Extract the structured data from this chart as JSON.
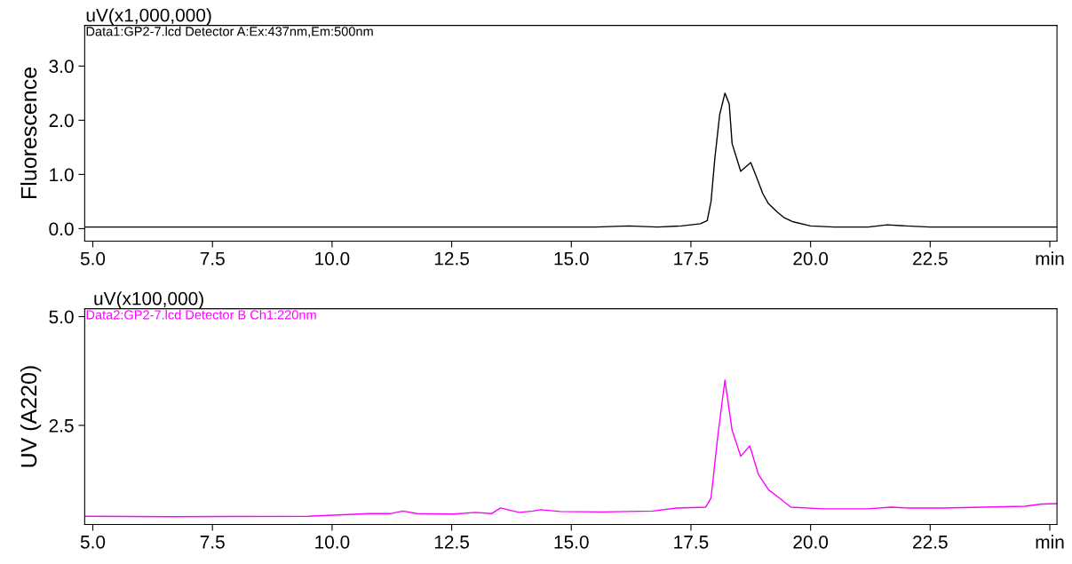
{
  "chart_data": [
    {
      "type": "line",
      "ylabel": "Fluorescence",
      "annotations": [
        "uV(x1,000,000)"
      ],
      "xlim": [
        4.83,
        25.15
      ],
      "ylim": [
        -0.23,
        3.75
      ],
      "xticks": [
        {
          "value": 5,
          "label": "5.0"
        },
        7.5,
        {
          "value": 10,
          "label": "10.0"
        },
        12.5,
        {
          "value": 15,
          "label": "15.0"
        },
        17.5,
        {
          "value": 20,
          "label": "20.0"
        },
        22.5,
        {
          "value": 25,
          "label": "min"
        }
      ],
      "yticks": [
        {
          "value": 0,
          "label": "0.0"
        },
        {
          "value": 1,
          "label": "1.0"
        },
        {
          "value": 2,
          "label": "2.0"
        },
        {
          "value": 3,
          "label": "3.0"
        }
      ],
      "grid": false,
      "legend": false,
      "series": [
        {
          "name": "Data1:GP2-7.lcd Detector A:Ex:437nm,Em:500nm",
          "color": "#000000",
          "x": [
            4.83,
            15.5,
            16.2,
            16.8,
            17.3,
            17.7,
            17.84,
            17.92,
            18.0,
            18.1,
            18.21,
            18.3,
            18.36,
            18.54,
            18.75,
            18.85,
            19.0,
            19.12,
            19.3,
            19.45,
            19.62,
            20.0,
            20.5,
            21.2,
            21.6,
            22.0,
            22.5,
            25.15
          ],
          "values": [
            0.03,
            0.03,
            0.05,
            0.03,
            0.05,
            0.09,
            0.15,
            0.5,
            1.3,
            2.1,
            2.5,
            2.3,
            1.57,
            1.06,
            1.22,
            1.0,
            0.65,
            0.46,
            0.31,
            0.2,
            0.13,
            0.05,
            0.03,
            0.03,
            0.07,
            0.05,
            0.03,
            0.03
          ]
        }
      ]
    },
    {
      "type": "line",
      "ylabel": "UV (A220)",
      "annotations": [
        "uV(x100,000)"
      ],
      "xlim": [
        4.83,
        25.15
      ],
      "ylim": [
        0.22,
        5.18
      ],
      "xticks": [
        {
          "value": 5,
          "label": "5.0"
        },
        7.5,
        {
          "value": 10,
          "label": "10.0"
        },
        12.5,
        {
          "value": 15,
          "label": "15.0"
        },
        17.5,
        {
          "value": 20,
          "label": "20.0"
        },
        22.5,
        {
          "value": 25,
          "label": "min"
        }
      ],
      "yticks": [
        2.5,
        {
          "value": 5,
          "label": "5.0"
        }
      ],
      "grid": false,
      "legend": false,
      "series": [
        {
          "name": "Data2:GP2-7.lcd Detector B Ch1:220nm",
          "color": "#ff00ff",
          "x": [
            4.84,
            6.64,
            9.5,
            10.78,
            11.21,
            11.48,
            11.78,
            12.56,
            12.99,
            13.33,
            13.52,
            13.91,
            14.2,
            14.36,
            14.77,
            15.63,
            16.7,
            17.2,
            17.81,
            17.92,
            18.06,
            18.21,
            18.36,
            18.54,
            18.73,
            18.91,
            19.12,
            19.3,
            19.59,
            20.26,
            21.19,
            21.69,
            22.05,
            22.76,
            24.47,
            24.83,
            25.15
          ],
          "values": [
            0.41,
            0.4,
            0.41,
            0.47,
            0.47,
            0.53,
            0.47,
            0.46,
            0.5,
            0.47,
            0.6,
            0.5,
            0.53,
            0.56,
            0.52,
            0.51,
            0.53,
            0.6,
            0.62,
            0.83,
            2.24,
            3.54,
            2.39,
            1.79,
            2.03,
            1.37,
            1.02,
            0.87,
            0.62,
            0.58,
            0.58,
            0.62,
            0.6,
            0.6,
            0.64,
            0.69,
            0.7
          ]
        }
      ]
    }
  ]
}
